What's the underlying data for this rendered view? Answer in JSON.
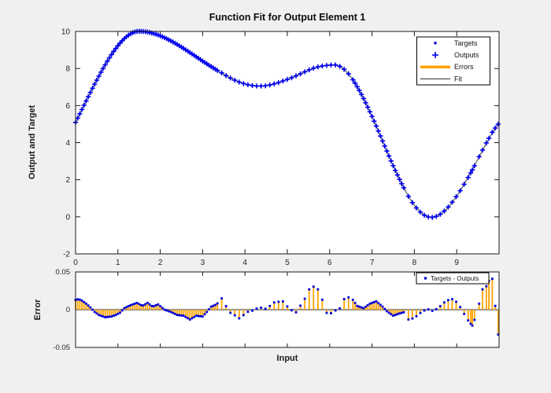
{
  "figure": {
    "background": "#F0F0F0",
    "plot_background": "#FFFFFF"
  },
  "colors": {
    "blue_plus": "#0202F2",
    "blue_dot": "#0000D8",
    "orange": "#FFA200",
    "fit_gray": "#666666",
    "baseline_gray": "#999999",
    "axis": "#1A1A1A",
    "tick_text": "#262626"
  },
  "main_plot": {
    "title": "Function Fit for Output Element 1",
    "ylabel": "Output and Target",
    "xticks": [
      0,
      1,
      2,
      3,
      4,
      5,
      6,
      7,
      8,
      9
    ],
    "yticks": [
      -2,
      0,
      2,
      4,
      6,
      8,
      10
    ],
    "legend": [
      {
        "label": "Targets",
        "marker": "dot",
        "color": "#0000D8"
      },
      {
        "label": "Outputs",
        "marker": "plus",
        "color": "#0202F2"
      },
      {
        "label": "Errors",
        "marker": "line-thick",
        "color": "#FFA200"
      },
      {
        "label": "Fit",
        "marker": "line",
        "color": "#666666"
      }
    ]
  },
  "error_plot": {
    "ylabel": "Error",
    "xlabel": "Input",
    "xticks": [
      0,
      1,
      2,
      3,
      4,
      5,
      6,
      7,
      8,
      9
    ],
    "yticks": [
      0.05,
      0,
      -0.05
    ],
    "legend": [
      {
        "label": "Targets - Outputs",
        "marker": "dot",
        "color": "#0000D8"
      }
    ]
  },
  "chart_data": [
    {
      "type": "scatter",
      "title": "Function Fit for Output Element 1",
      "xlabel": "Input",
      "ylabel": "Output and Target",
      "xlim": [
        0,
        10
      ],
      "ylim": [
        -2,
        10
      ],
      "grid": false,
      "legend_position": "top-right",
      "series_names": [
        "Targets",
        "Outputs",
        "Fit"
      ],
      "fit_knots": [
        [
          0.0,
          5.08,
          4.6
        ],
        [
          1.5,
          10.0,
          0
        ],
        [
          4.35,
          7.05,
          0
        ],
        [
          6.1,
          8.2,
          0
        ],
        [
          8.4,
          -0.03,
          0
        ],
        [
          10.0,
          5.1,
          3.4
        ]
      ],
      "key_points": [
        [
          0,
          5.1
        ],
        [
          1.5,
          10
        ],
        [
          4.35,
          7.05
        ],
        [
          6.1,
          8.2
        ],
        [
          8.4,
          0
        ],
        [
          10,
          5
        ]
      ],
      "x_sampling": {
        "segments": [
          [
            0.0,
            3.35,
            0.05
          ],
          [
            3.45,
            6.55,
            0.1033
          ],
          [
            6.6,
            7.75,
            0.05
          ],
          [
            7.86,
            9.27,
            0.094
          ]
        ],
        "extra": [
          9.33,
          9.37,
          9.42,
          9.53,
          9.61,
          9.7,
          9.76,
          9.84,
          9.91,
          9.98
        ]
      }
    },
    {
      "type": "stem",
      "xlabel": "Input",
      "ylabel": "Error",
      "xlim": [
        0,
        10
      ],
      "ylim": [
        -0.05,
        0.05
      ],
      "legend_position": "top-right",
      "series_names": [
        "Targets - Outputs"
      ],
      "errors_profile": [
        [
          0,
          0.013
        ],
        [
          0.07,
          0.014
        ],
        [
          0.15,
          0.012
        ],
        [
          0.25,
          0.008
        ],
        [
          0.35,
          0.003
        ],
        [
          0.45,
          -0.003
        ],
        [
          0.55,
          -0.007
        ],
        [
          0.7,
          -0.01
        ],
        [
          0.85,
          -0.009
        ],
        [
          0.95,
          -0.007
        ],
        [
          1.05,
          -0.004
        ],
        [
          1.15,
          0.002
        ],
        [
          1.3,
          0.006
        ],
        [
          1.45,
          0.009
        ],
        [
          1.58,
          0.005
        ],
        [
          1.7,
          0.009
        ],
        [
          1.82,
          0.004
        ],
        [
          1.95,
          0.007
        ],
        [
          2.1,
          0
        ],
        [
          2.25,
          -0.003
        ],
        [
          2.4,
          -0.007
        ],
        [
          2.55,
          -0.008
        ],
        [
          2.7,
          -0.013
        ],
        [
          2.85,
          -0.008
        ],
        [
          3,
          -0.009
        ],
        [
          3.1,
          -0.003
        ],
        [
          3.2,
          0.004
        ],
        [
          3.33,
          0.007
        ],
        [
          3.45,
          0.015
        ],
        [
          3.55,
          0.005
        ],
        [
          3.65,
          -0.004
        ],
        [
          3.75,
          -0.007
        ],
        [
          3.85,
          -0.012
        ],
        [
          3.95,
          -0.008
        ],
        [
          4.05,
          -0.003
        ],
        [
          4.15,
          -0.002
        ],
        [
          4.25,
          0.001
        ],
        [
          4.35,
          0.003
        ],
        [
          4.5,
          0.001
        ],
        [
          4.7,
          0.01
        ],
        [
          4.9,
          0.011
        ],
        [
          5.05,
          0.001
        ],
        [
          5.2,
          -0.004
        ],
        [
          5.4,
          0.013
        ],
        [
          5.55,
          0.031
        ],
        [
          5.7,
          0.03
        ],
        [
          5.85,
          0.01
        ],
        [
          5.95,
          -0.008
        ],
        [
          6.1,
          -0.002
        ],
        [
          6.25,
          0.002
        ],
        [
          6.35,
          0.015
        ],
        [
          6.5,
          0.017
        ],
        [
          6.65,
          0.005
        ],
        [
          6.8,
          0.002
        ],
        [
          6.95,
          0.008
        ],
        [
          7.1,
          0.011
        ],
        [
          7.25,
          0.004
        ],
        [
          7.35,
          -0.002
        ],
        [
          7.5,
          -0.008
        ],
        [
          7.65,
          -0.005
        ],
        [
          7.78,
          -0.003
        ],
        [
          7.86,
          -0.013
        ],
        [
          8,
          -0.011
        ],
        [
          8.15,
          -0.004
        ],
        [
          8.3,
          0.001
        ],
        [
          8.45,
          -0.002
        ],
        [
          8.6,
          0.004
        ],
        [
          8.75,
          0.012
        ],
        [
          8.9,
          0.014
        ],
        [
          9,
          0.01
        ],
        [
          9.1,
          0.002
        ],
        [
          9.2,
          -0.008
        ],
        [
          9.3,
          -0.017
        ],
        [
          9.37,
          -0.021
        ],
        [
          9.45,
          -0.009
        ],
        [
          9.53,
          0.008
        ],
        [
          9.61,
          0.027
        ],
        [
          9.7,
          0.031
        ],
        [
          9.76,
          0.038
        ],
        [
          9.84,
          0.041
        ],
        [
          9.91,
          0.005
        ],
        [
          9.98,
          -0.033
        ]
      ]
    }
  ]
}
